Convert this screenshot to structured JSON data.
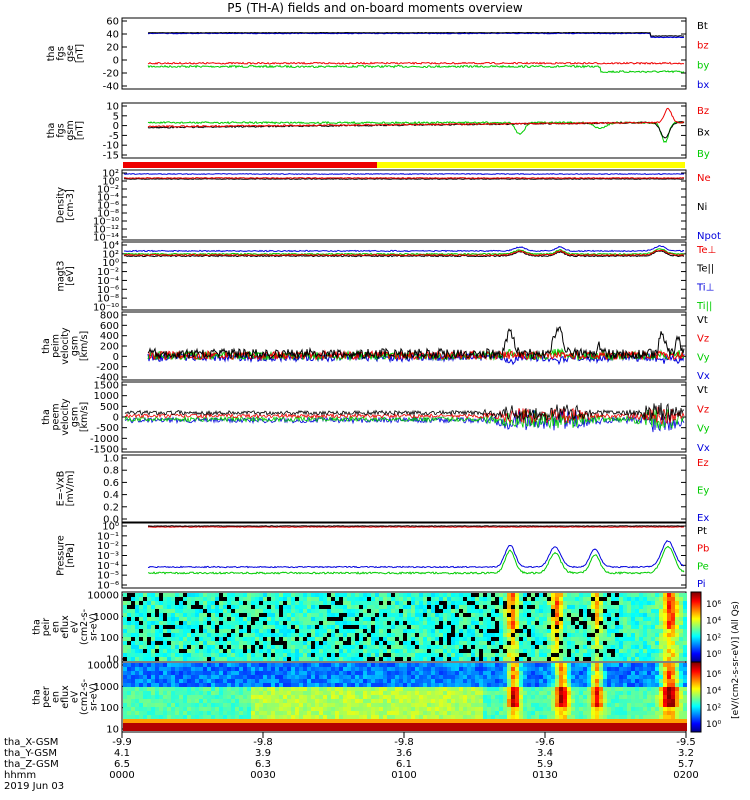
{
  "title": "P5 (TH-A) fields and on-board moments overview",
  "colors": {
    "black": "#000000",
    "red": "#ee0000",
    "green": "#00cc00",
    "blue": "#0000dd",
    "yellow": "#ffff00"
  },
  "panels": [
    {
      "id": "fgs-gse",
      "ylabel": [
        "tha",
        "fgs",
        "gse",
        "[nT]"
      ],
      "yticks": [
        "60",
        "40",
        "20",
        "0",
        "-20",
        "-40"
      ],
      "legend": [
        {
          "text": "Bt",
          "color": "black"
        },
        {
          "text": "bz",
          "color": "red"
        },
        {
          "text": "by",
          "color": "green"
        },
        {
          "text": "bx",
          "color": "blue"
        }
      ]
    },
    {
      "id": "fgs-gsm",
      "ylabel": [
        "tha",
        "fgs",
        "gsm",
        "[nT]"
      ],
      "yticks": [
        "10",
        "5",
        "0",
        "-5",
        "-10",
        "-15"
      ],
      "legend": [
        {
          "text": "Bz",
          "color": "red"
        },
        {
          "text": "Bx",
          "color": "black"
        },
        {
          "text": "By",
          "color": "green"
        }
      ]
    },
    {
      "id": "density",
      "ylabel": [
        "Density",
        "[cm-3]"
      ],
      "yticks": [
        "10²",
        "10⁰",
        "10⁻²",
        "10⁻⁴",
        "10⁻⁶",
        "10⁻⁸",
        "10⁻¹⁰",
        "10⁻¹²",
        "10⁻¹⁴"
      ],
      "legend": [
        {
          "text": "Ne",
          "color": "red"
        },
        {
          "text": "Ni",
          "color": "black"
        },
        {
          "text": "Npot",
          "color": "blue"
        }
      ]
    },
    {
      "id": "magt3",
      "ylabel": [
        "magt3",
        "[eV]"
      ],
      "yticks": [
        "10⁴",
        "10²",
        "10⁰",
        "10⁻²",
        "10⁻⁴",
        "10⁻⁶",
        "10⁻⁸",
        "10⁻¹⁰"
      ],
      "legend": [
        {
          "text": "Te⊥",
          "color": "red"
        },
        {
          "text": "Te||",
          "color": "black"
        },
        {
          "text": "Ti⊥",
          "color": "blue"
        },
        {
          "text": "Ti||",
          "color": "green"
        }
      ]
    },
    {
      "id": "peim-velocity",
      "ylabel": [
        "tha",
        "peim",
        "velocity",
        "gsm",
        "[km/s]"
      ],
      "yticks": [
        "800",
        "600",
        "400",
        "200",
        "0",
        "-200",
        "-400"
      ],
      "legend": [
        {
          "text": "Vt",
          "color": "black"
        },
        {
          "text": "Vz",
          "color": "red"
        },
        {
          "text": "Vy",
          "color": "green"
        },
        {
          "text": "Vx",
          "color": "blue"
        }
      ]
    },
    {
      "id": "peem-velocity",
      "ylabel": [
        "tha",
        "peem",
        "velocity",
        "gsm",
        "[km/s]"
      ],
      "yticks": [
        "1500",
        "1000",
        "500",
        "0",
        "-500",
        "-1000",
        "-1500"
      ],
      "legend": [
        {
          "text": "Vt",
          "color": "black"
        },
        {
          "text": "Vz",
          "color": "red"
        },
        {
          "text": "Vy",
          "color": "green"
        },
        {
          "text": "Vx",
          "color": "blue"
        }
      ]
    },
    {
      "id": "efield",
      "ylabel": [
        "E=-VxB",
        "[mV/m]"
      ],
      "yticks": [
        "1.0",
        "0.8",
        "0.6",
        "0.4",
        "0.2",
        "0.0"
      ],
      "legend": [
        {
          "text": "Ez",
          "color": "red"
        },
        {
          "text": "Ey",
          "color": "green"
        },
        {
          "text": "Ex",
          "color": "blue"
        }
      ]
    },
    {
      "id": "pressure",
      "ylabel": [
        "Pressure",
        "[nPa]"
      ],
      "yticks": [
        "10⁰",
        "10⁻¹",
        "10⁻²",
        "10⁻³",
        "10⁻⁴",
        "10⁻⁵",
        "10⁻⁶"
      ],
      "legend": [
        {
          "text": "Pt",
          "color": "black"
        },
        {
          "text": "Pb",
          "color": "red"
        },
        {
          "text": "Pe",
          "color": "green"
        },
        {
          "text": "Pi",
          "color": "blue"
        }
      ]
    },
    {
      "id": "peir-eflux",
      "ylabel": [
        "tha",
        "peir",
        "en",
        "eflux",
        "eV",
        "(cm2-s-",
        "sr-eV)"
      ],
      "yticks": [
        "10000",
        "1000",
        "100",
        "10"
      ]
    },
    {
      "id": "peer-eflux",
      "ylabel": [
        "tha",
        "peer",
        "en",
        "eflux",
        "eV",
        "(cm2-s-",
        "sr-eV)"
      ],
      "yticks": [
        "10000",
        "1000",
        "100",
        "10"
      ]
    }
  ],
  "colorbar": {
    "label": "[eV/(cm2-s-sr-eV)] (All Qs)",
    "ticks_upper": [
      "10⁶",
      "10⁴",
      "10²",
      "10⁰"
    ],
    "ticks_lower": [
      "10⁶",
      "10⁴",
      "10²",
      "10⁰"
    ]
  },
  "time_axis": {
    "ticks": [
      "0000",
      "0030",
      "0100",
      "0130",
      "0200"
    ],
    "row_labels": [
      "tha_X-GSM",
      "tha_Y-GSM",
      "tha_Z-GSM",
      "hhmm",
      "2019 Jun 03"
    ],
    "rows": [
      [
        "-9.9",
        "-9.8",
        "-9.8",
        "-9.6",
        "-9.5"
      ],
      [
        "4.1",
        "3.9",
        "3.6",
        "3.4",
        "3.2"
      ],
      [
        "6.5",
        "6.3",
        "6.1",
        "5.9",
        "5.7"
      ]
    ]
  },
  "chart_data": {
    "type": "line",
    "title": "P5 (TH-A) fields and on-board moments overview",
    "x_ticks": [
      "0000",
      "0030",
      "0100",
      "0130",
      "0200"
    ],
    "xlim_hhmm": [
      "0000",
      "0200"
    ],
    "series": [
      {
        "panel": "fgs-gse",
        "name": "Bt",
        "approx_level_nT": 42
      },
      {
        "panel": "fgs-gse",
        "name": "bz",
        "approx_level_nT": -5
      },
      {
        "panel": "fgs-gse",
        "name": "by",
        "approx_level_nT": -10
      },
      {
        "panel": "fgs-gse",
        "name": "bx",
        "approx_level_nT": 41
      },
      {
        "panel": "fgs-gsm",
        "name": "Bz",
        "approx_level_nT": 1
      },
      {
        "panel": "fgs-gsm",
        "name": "Bx",
        "approx_level_nT": -1
      },
      {
        "panel": "fgs-gsm",
        "name": "By",
        "approx_level_nT": 2
      },
      {
        "panel": "density",
        "name": "Ne",
        "approx_level_cm3": 0.2
      },
      {
        "panel": "density",
        "name": "Npot",
        "approx_level_cm3": 0.5
      },
      {
        "panel": "pressure",
        "name": "Pt",
        "approx_level_nPa": 0.5
      },
      {
        "panel": "pressure",
        "name": "Pi",
        "approx_level_nPa": 0.0003
      }
    ],
    "spectrogram_energy_range_eV": [
      10,
      10000
    ],
    "colorbar_range": [
      1,
      1000000
    ]
  }
}
